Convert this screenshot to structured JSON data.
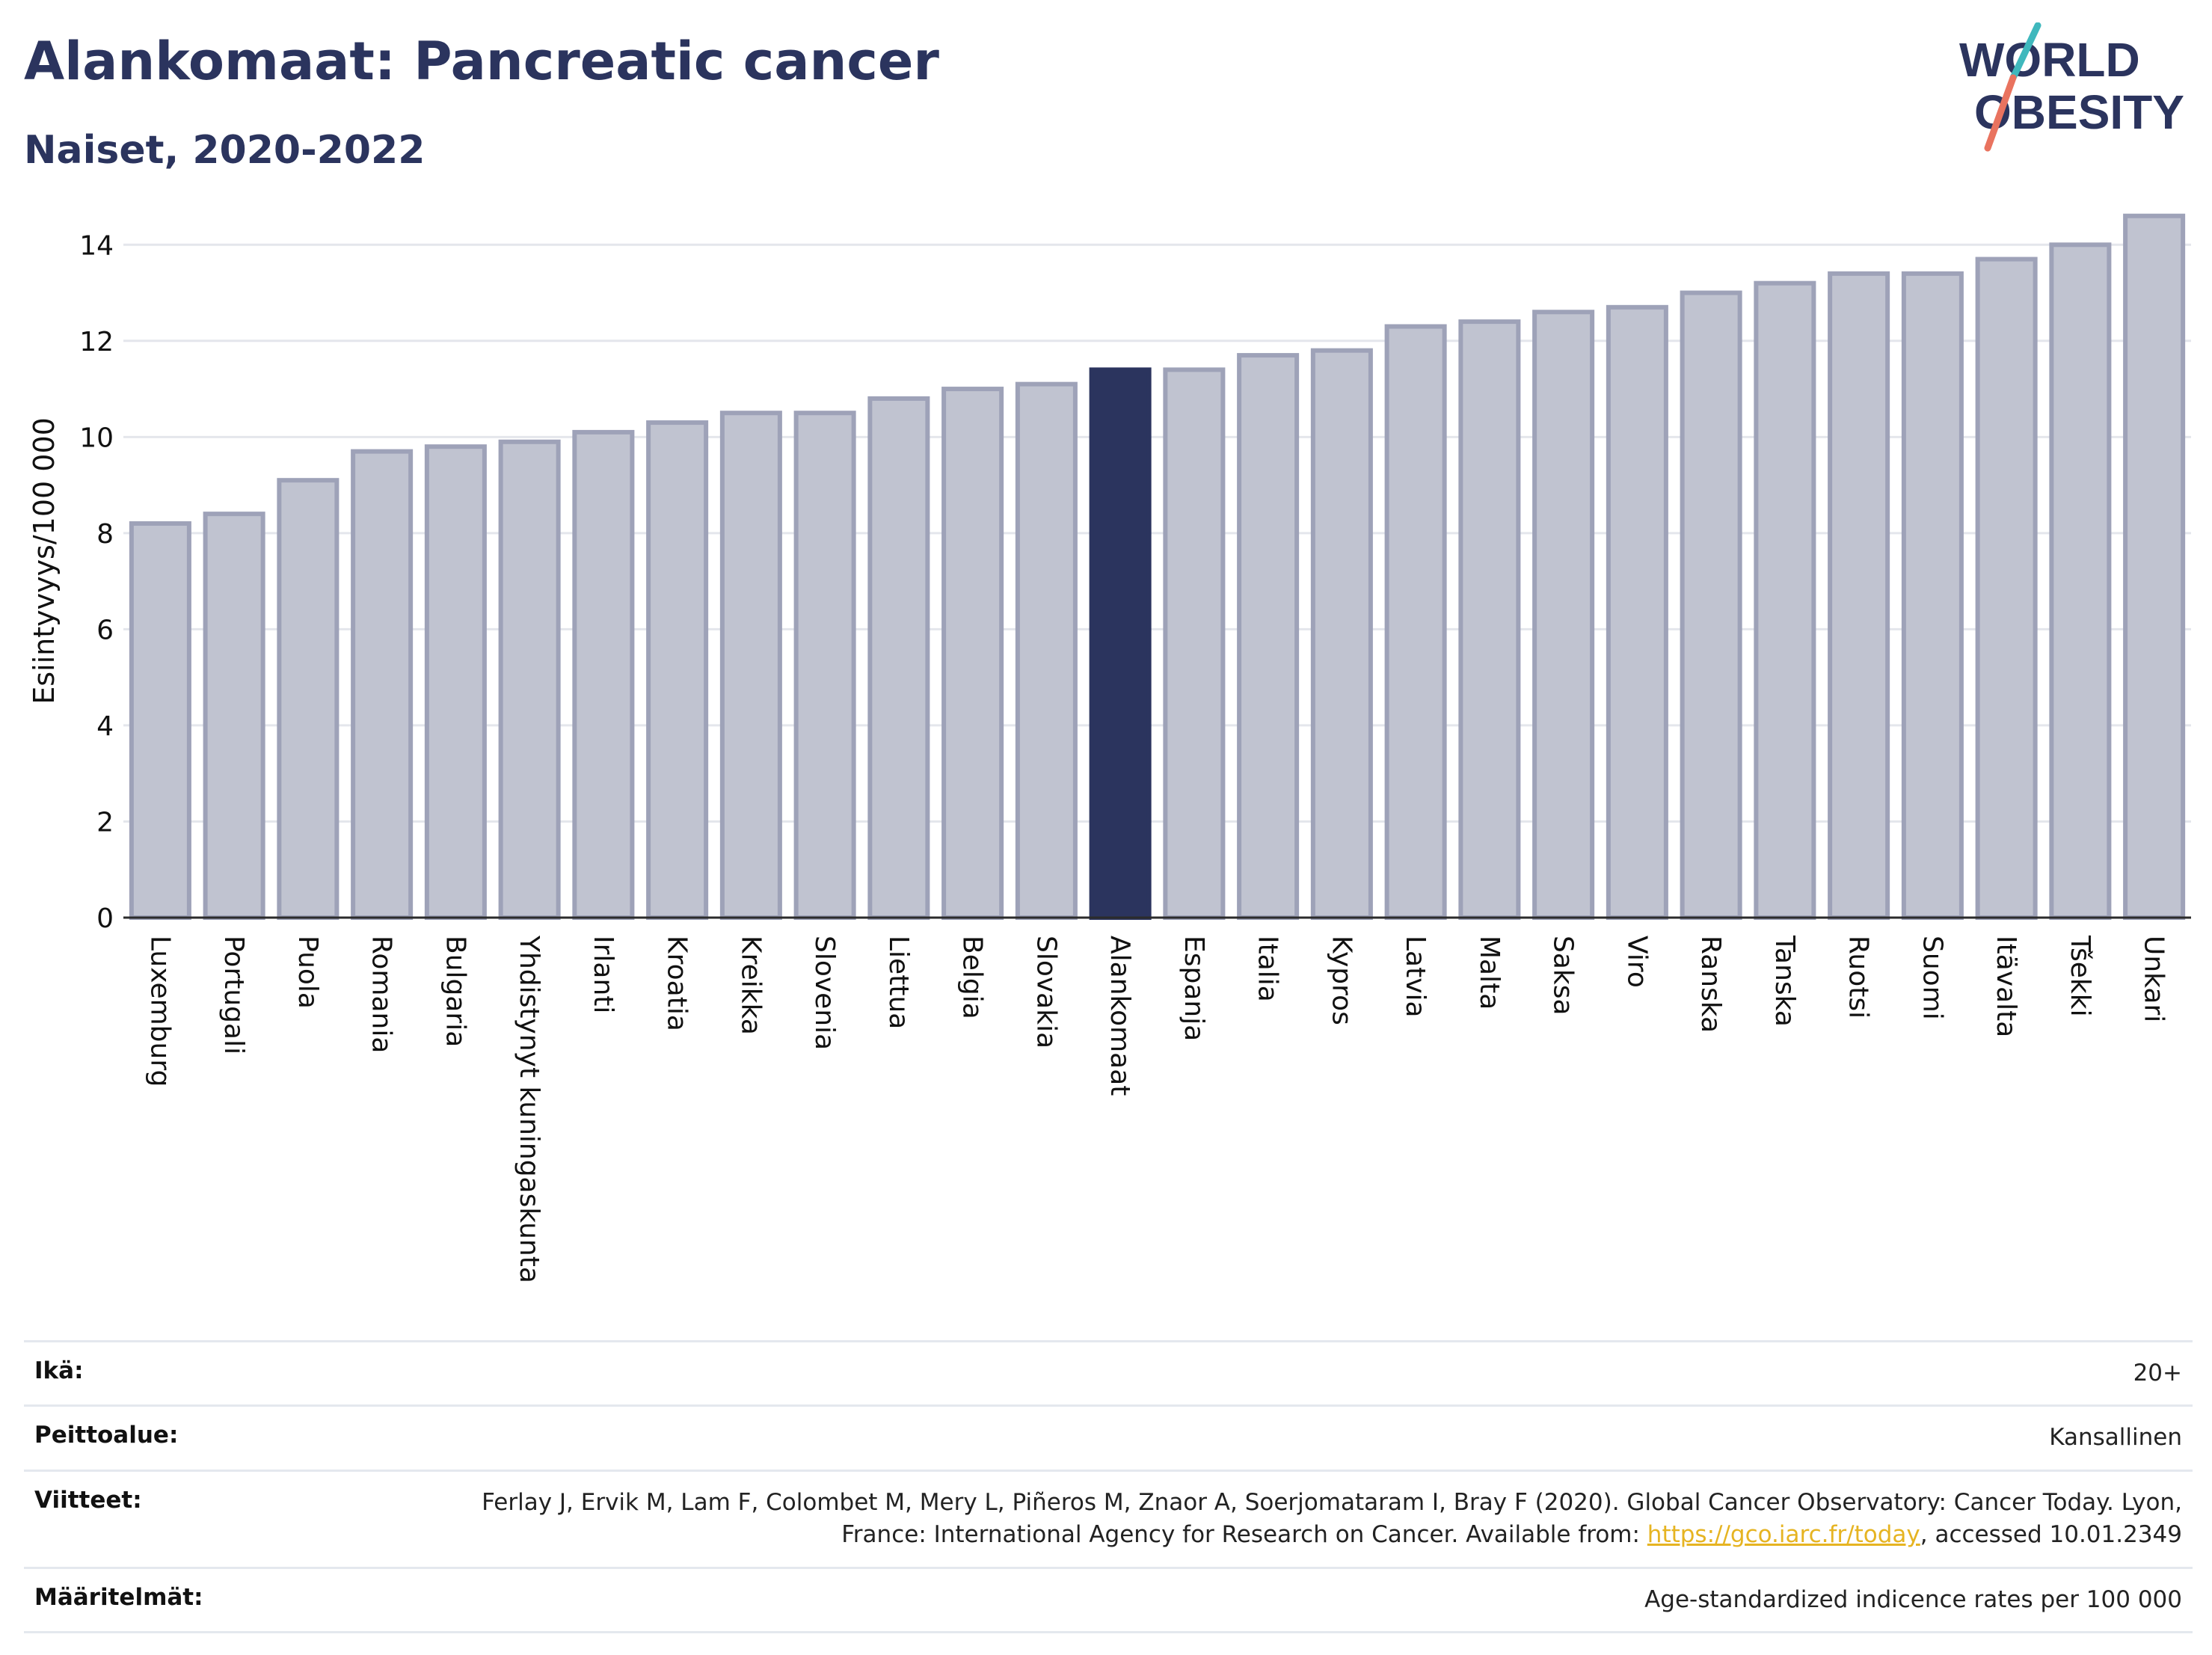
{
  "header": {
    "title": "Alankomaat: Pancreatic cancer",
    "subtitle": "Naiset, 2020-2022"
  },
  "logo": {
    "line1": "WORLD",
    "line2": "OBESITY",
    "accent_teal": "#3fb8bd",
    "accent_coral": "#e9735f"
  },
  "colors": {
    "bar": "#c0c3d0",
    "bar_stroke": "#9ea2b8",
    "highlight": "#2b345e",
    "grid": "#e4e6ec",
    "link": "#e6b422"
  },
  "chart_data": {
    "type": "bar",
    "ylabel": "Esiintyvyys/100 000",
    "ylim": [
      0,
      15
    ],
    "yticks": [
      0,
      2,
      4,
      6,
      8,
      10,
      12,
      14
    ],
    "highlight": "Alankomaat",
    "categories": [
      "Luxemburg",
      "Portugali",
      "Puola",
      "Romania",
      "Bulgaria",
      "Yhdistynyt kuningaskunta",
      "Irlanti",
      "Kroatia",
      "Kreikka",
      "Slovenia",
      "Liettua",
      "Belgia",
      "Slovakia",
      "Alankomaat",
      "Espanja",
      "Italia",
      "Kypros",
      "Latvia",
      "Malta",
      "Saksa",
      "Viro",
      "Ranska",
      "Tanska",
      "Ruotsi",
      "Suomi",
      "Itävalta",
      "Tšekki",
      "Unkari"
    ],
    "values": [
      8.2,
      8.4,
      9.1,
      9.7,
      9.8,
      9.9,
      10.1,
      10.3,
      10.5,
      10.5,
      10.8,
      11.0,
      11.1,
      11.4,
      11.4,
      11.7,
      11.8,
      12.3,
      12.4,
      12.6,
      12.7,
      13.0,
      13.2,
      13.4,
      13.4,
      13.7,
      14.0,
      14.6
    ]
  },
  "meta": {
    "age_label": "Ikä:",
    "age_value": "20+",
    "coverage_label": "Peittoalue:",
    "coverage_value": "Kansallinen",
    "refs_label": "Viitteet:",
    "refs_text_1": "Ferlay J, Ervik M, Lam F, Colombet M, Mery L, Piñeros M, Znaor A, Soerjomataram I, Bray F (2020). Global Cancer Observatory: Cancer Today. Lyon, France: International Agency for Research on Cancer. Available from: ",
    "refs_link": "https://gco.iarc.fr/today",
    "refs_text_2": ", accessed 10.01.2349",
    "def_label": "Määritelmät:",
    "def_value": "Age-standardized indicence rates per 100 000"
  }
}
